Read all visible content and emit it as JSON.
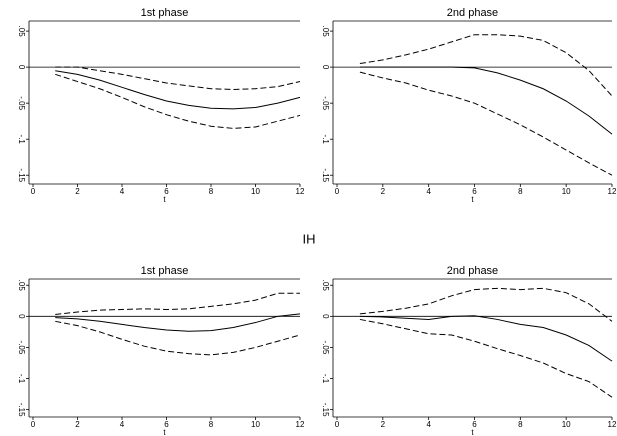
{
  "section_label": "IH",
  "chart_data": [
    {
      "type": "line",
      "title": "1st phase",
      "xlabel": "t",
      "x": [
        1,
        2,
        3,
        4,
        5,
        6,
        7,
        8,
        9,
        10,
        11,
        12
      ],
      "xlim": [
        0,
        12
      ],
      "xticks": [
        0,
        2,
        4,
        6,
        8,
        10,
        12
      ],
      "ylim": [
        -0.158,
        0.064
      ],
      "yticks": [
        {
          "value": 0.05,
          "label": ".05"
        },
        0,
        {
          "value": -0.05,
          "label": "-.05"
        },
        {
          "value": -0.1,
          "label": "-.1"
        },
        {
          "value": -0.15,
          "label": "-.15"
        }
      ],
      "ref_line": 0,
      "series": [
        {
          "color": "#000",
          "style": "solid",
          "values": [
            -0.005,
            -0.01,
            -0.018,
            -0.028,
            -0.038,
            -0.047,
            -0.053,
            -0.057,
            -0.058,
            -0.056,
            -0.05,
            -0.042
          ]
        },
        {
          "color": "#000",
          "style": "dash",
          "values": [
            0,
            0,
            -0.005,
            -0.01,
            -0.016,
            -0.022,
            -0.026,
            -0.03,
            -0.031,
            -0.03,
            -0.027,
            -0.02
          ]
        },
        {
          "color": "#000",
          "style": "dash",
          "values": [
            -0.01,
            -0.02,
            -0.03,
            -0.042,
            -0.055,
            -0.066,
            -0.075,
            -0.082,
            -0.085,
            -0.083,
            -0.075,
            -0.067
          ]
        }
      ]
    },
    {
      "type": "line",
      "title": "2nd phase",
      "xlabel": "t",
      "x": [
        1,
        2,
        3,
        4,
        5,
        6,
        7,
        8,
        9,
        10,
        11,
        12
      ],
      "xlim": [
        0,
        12
      ],
      "xticks": [
        0,
        2,
        4,
        6,
        8,
        10,
        12
      ],
      "ylim": [
        -0.158,
        0.064
      ],
      "yticks": [
        {
          "value": 0.05,
          "label": ".05"
        },
        0,
        {
          "value": -0.05,
          "label": "-.05"
        },
        {
          "value": -0.1,
          "label": "-.1"
        },
        {
          "value": -0.15,
          "label": "-.15"
        }
      ],
      "ref_line": 0,
      "series": [
        {
          "color": "#000",
          "style": "solid",
          "values": [
            0,
            0,
            0,
            0,
            0,
            -0.001,
            -0.008,
            -0.018,
            -0.03,
            -0.047,
            -0.068,
            -0.093
          ]
        },
        {
          "color": "#000",
          "style": "dash",
          "values": [
            0.005,
            0.01,
            0.017,
            0.025,
            0.035,
            0.045,
            0.045,
            0.043,
            0.037,
            0.02,
            -0.005,
            -0.04
          ]
        },
        {
          "color": "#000",
          "style": "dash",
          "values": [
            -0.007,
            -0.015,
            -0.022,
            -0.032,
            -0.04,
            -0.05,
            -0.065,
            -0.08,
            -0.097,
            -0.115,
            -0.133,
            -0.15
          ]
        }
      ]
    },
    {
      "type": "line",
      "title": "1st phase",
      "xlabel": "t",
      "x": [
        1,
        2,
        3,
        4,
        5,
        6,
        7,
        8,
        9,
        10,
        11,
        12
      ],
      "xlim": [
        0,
        12
      ],
      "xticks": [
        0,
        2,
        4,
        6,
        8,
        10,
        12
      ],
      "ylim": [
        -0.157,
        0.06
      ],
      "yticks": [
        {
          "value": 0.05,
          "label": ".05"
        },
        0,
        {
          "value": -0.05,
          "label": "-.05"
        },
        {
          "value": -0.1,
          "label": "-.1"
        },
        {
          "value": -0.15,
          "label": "-.15"
        }
      ],
      "ref_line": 0,
      "series": [
        {
          "color": "#000",
          "style": "solid",
          "values": [
            -0.002,
            -0.004,
            -0.008,
            -0.013,
            -0.018,
            -0.022,
            -0.024,
            -0.023,
            -0.018,
            -0.01,
            0,
            0.004
          ]
        },
        {
          "color": "#000",
          "style": "dash",
          "values": [
            0.003,
            0.007,
            0.01,
            0.011,
            0.012,
            0.011,
            0.012,
            0.016,
            0.02,
            0.026,
            0.037,
            0.037
          ]
        },
        {
          "color": "#000",
          "style": "dash",
          "values": [
            -0.008,
            -0.015,
            -0.025,
            -0.037,
            -0.048,
            -0.056,
            -0.06,
            -0.062,
            -0.058,
            -0.05,
            -0.04,
            -0.03
          ]
        }
      ]
    },
    {
      "type": "line",
      "title": "2nd phase",
      "xlabel": "t",
      "x": [
        1,
        2,
        3,
        4,
        5,
        6,
        7,
        8,
        9,
        10,
        11,
        12
      ],
      "xlim": [
        0,
        12
      ],
      "xticks": [
        0,
        2,
        4,
        6,
        8,
        10,
        12
      ],
      "ylim": [
        -0.157,
        0.06
      ],
      "yticks": [
        {
          "value": 0.05,
          "label": ".05"
        },
        0,
        {
          "value": -0.05,
          "label": "-.05"
        },
        {
          "value": -0.1,
          "label": "-.1"
        },
        {
          "value": -0.15,
          "label": "-.15"
        }
      ],
      "ref_line": 0,
      "series": [
        {
          "color": "#000",
          "style": "solid",
          "values": [
            0,
            -0.001,
            -0.003,
            -0.005,
            0,
            0.001,
            -0.005,
            -0.013,
            -0.018,
            -0.03,
            -0.047,
            -0.072
          ]
        },
        {
          "color": "#000",
          "style": "dash",
          "values": [
            0.004,
            0.008,
            0.013,
            0.02,
            0.033,
            0.043,
            0.045,
            0.043,
            0.045,
            0.038,
            0.02,
            -0.008
          ]
        },
        {
          "color": "#000",
          "style": "dash",
          "values": [
            -0.005,
            -0.012,
            -0.02,
            -0.028,
            -0.03,
            -0.04,
            -0.052,
            -0.063,
            -0.075,
            -0.092,
            -0.105,
            -0.13
          ]
        }
      ]
    }
  ]
}
